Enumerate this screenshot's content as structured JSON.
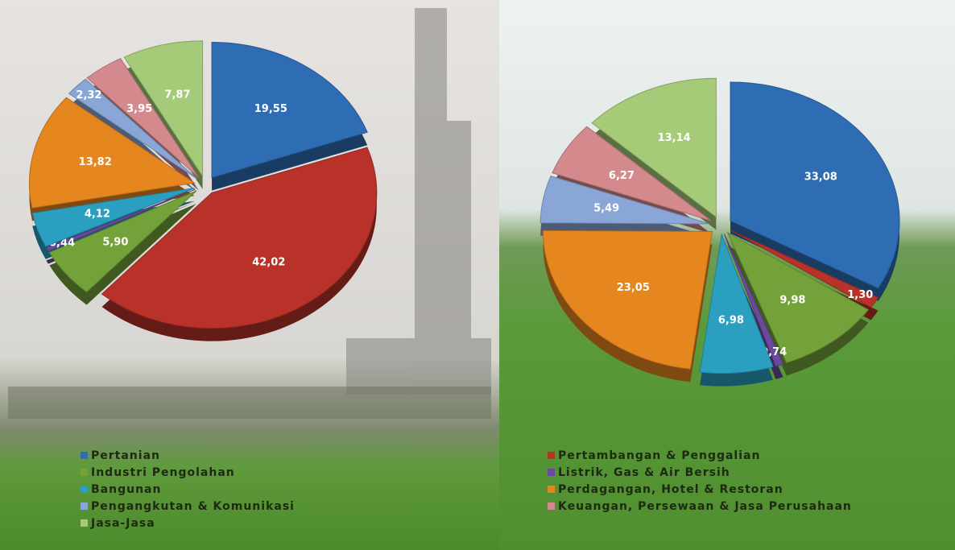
{
  "chart_data": {
    "type": "pie",
    "categories": [
      "Pertanian",
      "Pertambangan & Penggalian",
      "Industri Pengolahan",
      "Listrik, Gas & Air Bersih",
      "Bangunan",
      "Perdagangan, Hotel & Restoran",
      "Pengangkutan & Komunikasi",
      "Keuangan, Persewaan & Jasa Perusahaan",
      "Jasa-Jasa"
    ],
    "colors": [
      "#2e6db4",
      "#b8322a",
      "#74a23a",
      "#6a4a9c",
      "#2a9fc0",
      "#e5861f",
      "#8aa6d6",
      "#d48a8c",
      "#a6cb78"
    ],
    "series": [
      {
        "values": [
          19.55,
          42.02,
          5.9,
          0.44,
          4.12,
          13.82,
          2.32,
          3.95,
          7.87
        ],
        "value_labels": [
          "19,55",
          "42,02",
          "5,90",
          "0,44",
          "4,12",
          "13,82",
          "2,32",
          "3,95",
          "7,87"
        ]
      },
      {
        "values": [
          33.08,
          1.3,
          9.98,
          0.74,
          6.98,
          23.05,
          5.49,
          6.27,
          13.14
        ],
        "value_labels": [
          "33,08",
          "1,30",
          "9,98",
          "0,74",
          "6,98",
          "23,05",
          "5,49",
          "6,27",
          "13,14"
        ]
      }
    ]
  }
}
